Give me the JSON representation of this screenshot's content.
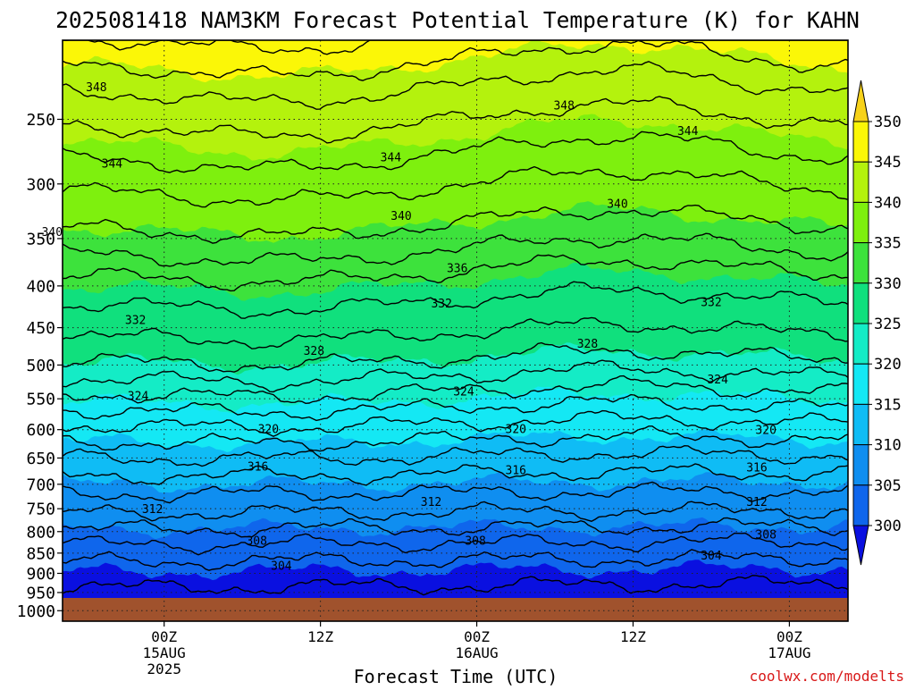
{
  "chart_data": {
    "type": "heatmap",
    "title": "2025081418 NAM3KM Forecast Potential Temperature (K) for KAHN",
    "xlabel": "Forecast Time (UTC)",
    "ylabel": "",
    "credit": "coolwx.com/modelts",
    "y_scale": "log-pressure",
    "y_ticks": [
      250,
      300,
      350,
      400,
      450,
      500,
      550,
      600,
      650,
      700,
      750,
      800,
      850,
      900,
      950,
      1000
    ],
    "x_ticks": [
      {
        "hour": 6,
        "label": [
          "00Z",
          "15AUG",
          "2025"
        ]
      },
      {
        "hour": 18,
        "label": [
          "12Z"
        ]
      },
      {
        "hour": 30,
        "label": [
          "00Z",
          "16AUG"
        ]
      },
      {
        "hour": 42,
        "label": [
          "12Z"
        ]
      },
      {
        "hour": 54,
        "label": [
          "00Z",
          "17AUG"
        ]
      }
    ],
    "colorbar": {
      "ticks": [
        350,
        345,
        340,
        335,
        330,
        325,
        320,
        315,
        310,
        305,
        300
      ],
      "bins": [
        {
          "range": [
            350,
            355
          ],
          "color": "#f7d21a"
        },
        {
          "range": [
            345,
            350
          ],
          "color": "#fbf707"
        },
        {
          "range": [
            340,
            345
          ],
          "color": "#b4f20d"
        },
        {
          "range": [
            335,
            340
          ],
          "color": "#7ef00e"
        },
        {
          "range": [
            330,
            335
          ],
          "color": "#3de23c"
        },
        {
          "range": [
            325,
            330
          ],
          "color": "#10e07d"
        },
        {
          "range": [
            320,
            325
          ],
          "color": "#14ecc6"
        },
        {
          "range": [
            315,
            320
          ],
          "color": "#14e8f4"
        },
        {
          "range": [
            310,
            315
          ],
          "color": "#0fbcf5"
        },
        {
          "range": [
            305,
            310
          ],
          "color": "#0f8ef0"
        },
        {
          "range": [
            300,
            305
          ],
          "color": "#0f66ec"
        },
        {
          "range": [
            295,
            300
          ],
          "color": "#0a10e0"
        }
      ]
    },
    "ground_color": "#a0522d",
    "contour_labels": [
      {
        "value": "348",
        "hour": 0.8,
        "p": 228
      },
      {
        "value": "348",
        "hour": 36.7,
        "p": 240
      },
      {
        "value": "344",
        "hour": 2.0,
        "p": 283
      },
      {
        "value": "344",
        "hour": 23.4,
        "p": 278
      },
      {
        "value": "344",
        "hour": 46.2,
        "p": 258
      },
      {
        "value": "340",
        "hour": -2.6,
        "p": 343
      },
      {
        "value": "340",
        "hour": 24.2,
        "p": 328
      },
      {
        "value": "340",
        "hour": 40.8,
        "p": 317
      },
      {
        "value": "336",
        "hour": 28.5,
        "p": 380
      },
      {
        "value": "332",
        "hour": 3.8,
        "p": 440
      },
      {
        "value": "332",
        "hour": 27.3,
        "p": 420
      },
      {
        "value": "332",
        "hour": 48.0,
        "p": 418
      },
      {
        "value": "328",
        "hour": 17.5,
        "p": 480
      },
      {
        "value": "328",
        "hour": 38.5,
        "p": 470
      },
      {
        "value": "324",
        "hour": 4.0,
        "p": 545
      },
      {
        "value": "324",
        "hour": 29.0,
        "p": 538
      },
      {
        "value": "324",
        "hour": 48.5,
        "p": 520
      },
      {
        "value": "320",
        "hour": 14.0,
        "p": 598
      },
      {
        "value": "320",
        "hour": 33.0,
        "p": 598
      },
      {
        "value": "320",
        "hour": 52.2,
        "p": 600
      },
      {
        "value": "316",
        "hour": 13.2,
        "p": 665
      },
      {
        "value": "316",
        "hour": 33.0,
        "p": 672
      },
      {
        "value": "316",
        "hour": 51.5,
        "p": 667
      },
      {
        "value": "312",
        "hour": 5.1,
        "p": 750
      },
      {
        "value": "312",
        "hour": 26.5,
        "p": 735
      },
      {
        "value": "312",
        "hour": 51.5,
        "p": 735
      },
      {
        "value": "308",
        "hour": 13.1,
        "p": 820
      },
      {
        "value": "308",
        "hour": 29.9,
        "p": 820
      },
      {
        "value": "308",
        "hour": 52.2,
        "p": 805
      },
      {
        "value": "304",
        "hour": 15.0,
        "p": 880
      },
      {
        "value": "304",
        "hour": 48.0,
        "p": 855
      }
    ]
  }
}
